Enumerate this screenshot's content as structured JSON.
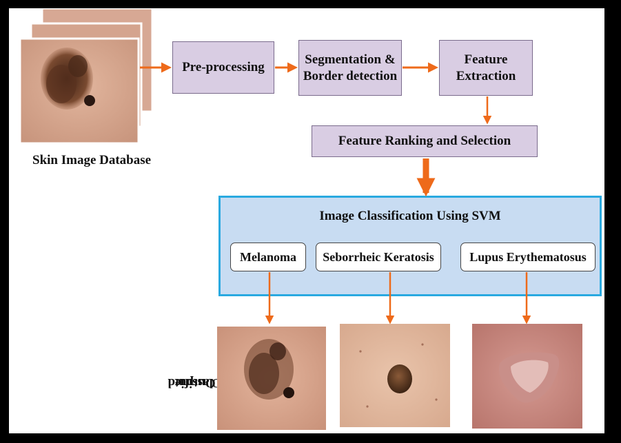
{
  "database_label": "Skin Image Database",
  "steps": {
    "preprocessing": "Pre-processing",
    "segmentation_line1": "Segmentation &",
    "segmentation_line2": "Border detection",
    "feature_line1": "Feature",
    "feature_line2": "Extraction",
    "ranking": "Feature Ranking and Selection"
  },
  "svm": {
    "title": "Image Classification Using SVM",
    "classes": [
      "Melanoma",
      "Seborrheic Keratosis",
      "Lupus Erythematosus"
    ]
  },
  "output_label_line1": "Classified",
  "output_label_line2": "Output",
  "colors": {
    "arrow": "#ee6a1a",
    "step_fill": "#d9cde3",
    "svm_fill": "#c8dcf2",
    "svm_border": "#29a9e0"
  }
}
